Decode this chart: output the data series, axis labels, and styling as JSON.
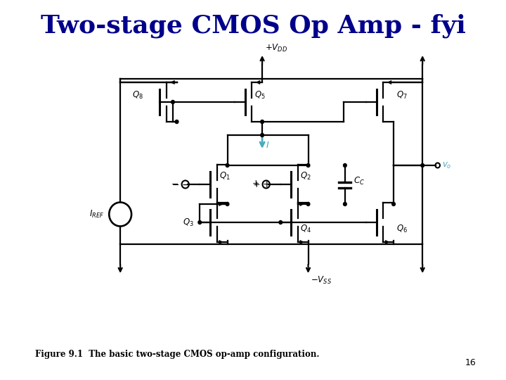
{
  "title": "Two-stage CMOS Op Amp - fyi",
  "title_color": "#00008B",
  "title_fontsize": 26,
  "caption": "Figure 9.1  The basic two-stage CMOS op-amp configuration.",
  "page_number": "16",
  "bg_color": "#ffffff",
  "line_color": "#000000",
  "cyan_color": "#4AAABB",
  "lw": 1.6,
  "figsize": [
    7.2,
    5.4
  ],
  "dpi": 100
}
